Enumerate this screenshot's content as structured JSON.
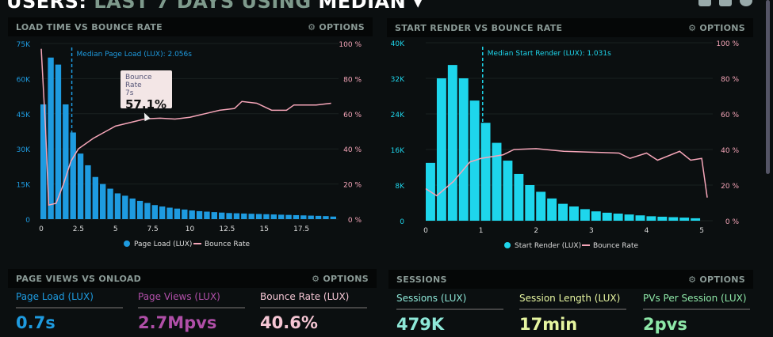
{
  "header": {
    "title_prefix": "USERS:",
    "title_mid": "LAST 7 DAYS",
    "title_using": "USING",
    "title_mode": "MEDIAN",
    "chevron": "▾"
  },
  "top_icons": [
    "monitor-icon",
    "share-icon",
    "help-icon"
  ],
  "panels": {
    "load": {
      "title": "LOAD TIME VS BOUNCE RATE",
      "options": "⚙ OPTIONS"
    },
    "render": {
      "title": "START RENDER VS BOUNCE RATE",
      "options": "⚙ OPTIONS"
    },
    "pageviews": {
      "title": "PAGE VIEWS VS ONLOAD",
      "options": "⚙ OPTIONS"
    },
    "sessions": {
      "title": "SESSIONS",
      "options": "⚙ OPTIONS"
    }
  },
  "metrics": [
    {
      "label": "Page Load (LUX)",
      "value": "0.7s",
      "color": "#1e9be0"
    },
    {
      "label": "Page Views (LUX)",
      "value": "2.7Mpvs",
      "color": "#b04fa8"
    },
    {
      "label": "Bounce Rate (LUX)",
      "value": "40.6%",
      "color": "#f5c6d4"
    },
    {
      "label": "Sessions (LUX)",
      "value": "479K",
      "color": "#8ee8d8"
    },
    {
      "label": "Session Length (LUX)",
      "value": "17min",
      "color": "#e6f5a0"
    },
    {
      "label": "PVs Per Session (LUX)",
      "value": "2pvs",
      "color": "#8ee8a8"
    }
  ],
  "tooltip": {
    "title": "Bounce Rate",
    "sub": "7s",
    "value": "57.1%"
  },
  "chart_data": [
    {
      "type": "bar+line",
      "title": "LOAD TIME VS BOUNCE RATE",
      "bar_color": "#1e9be0",
      "line_color": "#f5a5b8",
      "ylim": [
        0,
        75000
      ],
      "y_ticks": [
        "0",
        "15K",
        "30K",
        "45K",
        "60K",
        "75K"
      ],
      "y2lim": [
        0,
        100
      ],
      "y2_ticks": [
        "0 %",
        "20 %",
        "40 %",
        "60 %",
        "80 %",
        "100 %"
      ],
      "xlim": [
        0,
        20
      ],
      "x_ticks": [
        "0",
        "2.5",
        "5",
        "7.5",
        "10",
        "12.5",
        "15",
        "17.5"
      ],
      "bin_width": 0.5,
      "annotation": "Median Page Load (LUX): 2.056s",
      "median": 2.056,
      "series": [
        {
          "name": "Page Load (LUX)",
          "values": [
            49000,
            69000,
            66000,
            49000,
            37000,
            28000,
            23000,
            18000,
            15000,
            13000,
            11000,
            10000,
            8800,
            7800,
            6900,
            6000,
            5400,
            4900,
            4500,
            4100,
            3700,
            3400,
            3200,
            3000,
            2800,
            2600,
            2500,
            2400,
            2300,
            2200,
            2100,
            2000,
            1900,
            1800,
            1700,
            1600,
            1500,
            1400,
            1300,
            1100
          ]
        },
        {
          "name": "Bounce Rate",
          "points": [
            [
              0,
              97
            ],
            [
              0.3,
              50
            ],
            [
              0.5,
              8
            ],
            [
              1,
              9
            ],
            [
              1.5,
              20
            ],
            [
              2,
              33
            ],
            [
              2.5,
              40
            ],
            [
              3.5,
              46
            ],
            [
              5,
              53
            ],
            [
              7,
              57.1
            ],
            [
              8,
              57.5
            ],
            [
              9,
              57
            ],
            [
              10,
              58
            ],
            [
              11,
              60
            ],
            [
              12,
              62
            ],
            [
              13,
              63
            ],
            [
              13.5,
              67
            ],
            [
              14.5,
              66
            ],
            [
              15.5,
              62
            ],
            [
              16.5,
              62
            ],
            [
              17,
              65
            ],
            [
              18.5,
              65
            ],
            [
              19.5,
              66
            ]
          ]
        }
      ]
    },
    {
      "type": "bar+line",
      "title": "START RENDER VS BOUNCE RATE",
      "bar_color": "#1ed6ec",
      "line_color": "#f5a5b8",
      "ylim": [
        0,
        40000
      ],
      "y_ticks": [
        "0",
        "8K",
        "16K",
        "24K",
        "32K",
        "40K"
      ],
      "y2lim": [
        0,
        100
      ],
      "y2_ticks": [
        "0 %",
        "20 %",
        "40 %",
        "60 %",
        "80 %",
        "100 %"
      ],
      "xlim": [
        0,
        5.2
      ],
      "x_ticks": [
        "0",
        "1",
        "2",
        "3",
        "4",
        "5"
      ],
      "bin_width": 0.2,
      "annotation": "Median Start Render (LUX): 1.031s",
      "median": 1.031,
      "series": [
        {
          "name": "Start Render (LUX)",
          "values": [
            13000,
            32000,
            35000,
            32000,
            27000,
            22000,
            17500,
            13500,
            10500,
            8000,
            6500,
            5000,
            3800,
            3200,
            2600,
            2100,
            1800,
            1600,
            1400,
            1200,
            1000,
            900,
            800,
            700,
            550
          ]
        },
        {
          "name": "Bounce Rate",
          "points": [
            [
              0,
              18
            ],
            [
              0.2,
              14
            ],
            [
              0.5,
              22
            ],
            [
              0.8,
              33
            ],
            [
              1,
              35
            ],
            [
              1.4,
              37
            ],
            [
              1.6,
              40
            ],
            [
              2,
              40.5
            ],
            [
              2.5,
              39
            ],
            [
              3,
              38.5
            ],
            [
              3.5,
              38
            ],
            [
              3.7,
              35
            ],
            [
              4,
              38
            ],
            [
              4.2,
              34
            ],
            [
              4.6,
              39
            ],
            [
              4.8,
              34
            ],
            [
              5,
              35
            ],
            [
              5.1,
              13
            ]
          ]
        }
      ]
    }
  ]
}
